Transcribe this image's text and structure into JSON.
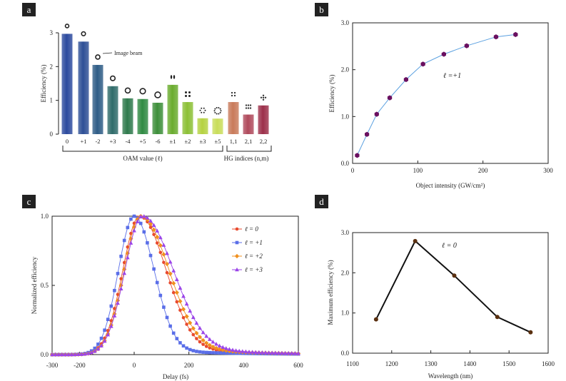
{
  "figure": {
    "panel_labels": [
      "a",
      "b",
      "c",
      "d"
    ]
  },
  "chart_data": [
    {
      "panel": "a",
      "type": "bar",
      "title": "",
      "xlabel": "OAM value (ℓ)",
      "xlabel_hg": "HG indices (n,m)",
      "ylabel": "Efficiency (%)",
      "ylim": [
        0,
        3
      ],
      "yticks": [
        "0",
        "1",
        "2",
        "3"
      ],
      "annotation": "Image beam",
      "categories": [
        "0",
        "+1",
        "-2",
        "+3",
        "-4",
        "+5",
        "-6",
        "±1",
        "±2",
        "±3",
        "±5",
        "1,1",
        "2,1",
        "2,2"
      ],
      "values": [
        2.97,
        2.74,
        2.05,
        1.42,
        1.06,
        1.04,
        0.93,
        1.46,
        0.95,
        0.47,
        0.46,
        0.95,
        0.58,
        0.85
      ],
      "group": [
        "oam",
        "oam",
        "oam",
        "oam",
        "oam",
        "oam",
        "oam",
        "oam",
        "oam",
        "oam",
        "oam",
        "hg",
        "hg",
        "hg"
      ],
      "colors": [
        "#2c4a9e",
        "#2d4f96",
        "#2e5c86",
        "#2f6b6a",
        "#2f7a4c",
        "#2f8a42",
        "#3d8f3a",
        "#6aac2e",
        "#8cc036",
        "#b5d241",
        "#c9dd5a",
        "#c97a5a",
        "#b04a5c",
        "#9c2f4a"
      ],
      "insets": [
        "ring",
        "ring",
        "ring",
        "ring",
        "ring",
        "ring",
        "ring",
        "two-lobe",
        "four-dot",
        "six-dot",
        "ring-dots",
        "hg-grid",
        "hg-grid",
        "hg-grid"
      ]
    },
    {
      "panel": "b",
      "type": "line",
      "xlabel": "Object intensity (GW/cm²)",
      "ylabel": "Efficiency (%)",
      "xlim": [
        0,
        300
      ],
      "ylim": [
        0,
        3
      ],
      "xticks": [
        "0",
        "100",
        "200",
        "300"
      ],
      "yticks": [
        "0.0",
        "1.0",
        "2.0",
        "3.0"
      ],
      "annotation": "ℓ =+1",
      "series": [
        {
          "name": "data",
          "x": [
            7,
            22,
            37,
            57,
            82,
            108,
            140,
            175,
            220,
            250
          ],
          "y": [
            0.17,
            0.62,
            1.05,
            1.4,
            1.79,
            2.12,
            2.33,
            2.51,
            2.7,
            2.75
          ],
          "color": "#6a1060"
        }
      ],
      "fit_color": "#5aa0e0"
    },
    {
      "panel": "c",
      "type": "line",
      "xlabel": "Delay (fs)",
      "ylabel": "Normalized efficiency",
      "xlim": [
        -300,
        600
      ],
      "ylim": [
        0,
        1
      ],
      "xticks": [
        "-300",
        "-200",
        "0",
        "200",
        "400",
        "600"
      ],
      "yticks": [
        "0.0",
        "0.5",
        "1.0"
      ],
      "series": [
        {
          "name": "ℓ = 0",
          "center": 20,
          "sl": 62,
          "sr": 95,
          "tail": 0.06,
          "color": "#e84a2e",
          "marker": "circle"
        },
        {
          "name": "ℓ = +1",
          "center": 0,
          "sl": 58,
          "sr": 72,
          "tail": 0.04,
          "color": "#5a6ee8",
          "marker": "square"
        },
        {
          "name": "ℓ = +2",
          "center": 25,
          "sl": 62,
          "sr": 100,
          "tail": 0.07,
          "color": "#f0901e",
          "marker": "diamond"
        },
        {
          "name": "ℓ = +3",
          "center": 30,
          "sl": 64,
          "sr": 110,
          "tail": 0.08,
          "color": "#9b45e8",
          "marker": "triangle"
        }
      ]
    },
    {
      "panel": "d",
      "type": "line",
      "xlabel": "Wavelength (nm)",
      "ylabel": "Maximum efficiency (%)",
      "xlim": [
        1100,
        1600
      ],
      "ylim": [
        0,
        3
      ],
      "xticks": [
        "1100",
        "1200",
        "1300",
        "1400",
        "1500",
        "1600"
      ],
      "yticks": [
        "0.0",
        "1.0",
        "2.0",
        "3.0"
      ],
      "annotation": "ℓ = 0",
      "series": [
        {
          "name": "data",
          "x": [
            1160,
            1260,
            1360,
            1470,
            1555
          ],
          "y": [
            0.84,
            2.79,
            1.93,
            0.9,
            0.52
          ],
          "color": "#111111",
          "marker_color": "#5a3010"
        }
      ]
    }
  ]
}
